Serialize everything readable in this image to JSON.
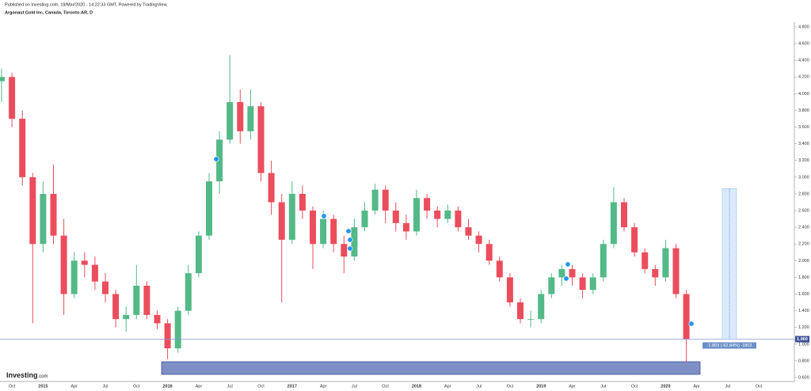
{
  "header": {
    "published": "Published on Investing.com, 19/Mar/2020 - 14:22:33 GMT, Powered by TradingView.",
    "symbol": "Argonaut Gold Inc, Canada, Toronto:AR, D"
  },
  "logo": {
    "brand": "Investing",
    "suffix": ".com"
  },
  "chart_data": {
    "type": "candlestick",
    "categories": [
      null,
      "Oct",
      null,
      null,
      "2015",
      null,
      null,
      "Apr",
      null,
      null,
      "Jul",
      null,
      null,
      "Oct",
      null,
      null,
      "2016",
      null,
      null,
      "Apr",
      null,
      null,
      "Jul",
      null,
      null,
      "Oct",
      null,
      null,
      "2017",
      null,
      null,
      "Apr",
      null,
      null,
      "Jul",
      null,
      null,
      "Oct",
      null,
      null,
      "2018",
      null,
      null,
      "Apr",
      null,
      null,
      "Jul",
      null,
      null,
      "Oct",
      null,
      null,
      "2019",
      null,
      null,
      "Apr",
      null,
      null,
      "Jul",
      null,
      null,
      "Oct",
      null,
      null,
      "2020",
      null,
      null,
      "Apr",
      null,
      null,
      "Jul",
      null,
      null,
      "Oct"
    ],
    "open": [
      4.15,
      4.2,
      3.7,
      3.0,
      2.2,
      2.8,
      2.3,
      1.6,
      2.0,
      1.95,
      1.75,
      1.6,
      1.3,
      1.35,
      1.7,
      1.35,
      1.25,
      0.95,
      1.4,
      1.85,
      2.3,
      2.95,
      3.45,
      3.9,
      3.55,
      3.85,
      3.05,
      2.7,
      2.25,
      2.8,
      2.6,
      2.2,
      2.5,
      2.2,
      2.05,
      2.4,
      2.6,
      2.85,
      2.6,
      2.45,
      2.35,
      2.75,
      2.6,
      2.5,
      2.6,
      2.4,
      2.3,
      2.2,
      2.0,
      1.8,
      1.5,
      1.3,
      1.3,
      1.6,
      1.8,
      1.9,
      1.8,
      1.65,
      1.8,
      2.2,
      2.7,
      2.4,
      2.1,
      1.9,
      1.8,
      2.15,
      1.6,
      null,
      null,
      null,
      null,
      null,
      null,
      null
    ],
    "high": [
      4.3,
      4.25,
      3.8,
      3.05,
      2.95,
      3.15,
      2.5,
      2.1,
      2.1,
      2.05,
      1.85,
      1.65,
      1.45,
      1.95,
      1.75,
      1.4,
      1.3,
      1.45,
      1.95,
      2.35,
      3.05,
      3.55,
      4.46,
      4.05,
      4.05,
      3.9,
      3.2,
      2.8,
      2.95,
      2.9,
      2.65,
      2.6,
      2.55,
      2.3,
      2.5,
      2.7,
      2.92,
      2.9,
      2.7,
      2.55,
      2.85,
      2.8,
      2.65,
      2.67,
      2.65,
      2.5,
      2.35,
      2.25,
      2.05,
      1.85,
      1.55,
      1.4,
      1.65,
      1.85,
      1.95,
      1.95,
      1.85,
      1.85,
      2.25,
      2.88,
      2.75,
      2.45,
      2.15,
      1.95,
      2.25,
      2.2,
      1.65,
      null,
      null,
      null,
      null,
      null,
      null,
      null
    ],
    "low": [
      3.9,
      3.6,
      2.9,
      1.25,
      2.1,
      2.2,
      1.35,
      1.55,
      1.8,
      1.65,
      1.5,
      1.2,
      1.15,
      1.3,
      1.3,
      1.18,
      0.82,
      0.9,
      1.35,
      1.8,
      2.25,
      2.8,
      3.4,
      3.4,
      3.45,
      2.95,
      2.55,
      1.5,
      2.2,
      2.5,
      1.9,
      2.15,
      2.1,
      1.85,
      2.0,
      2.35,
      2.55,
      2.45,
      2.35,
      2.25,
      2.3,
      2.5,
      2.4,
      2.45,
      2.35,
      2.25,
      2.1,
      1.95,
      1.75,
      1.45,
      1.25,
      1.2,
      1.25,
      1.55,
      1.7,
      1.7,
      1.55,
      1.6,
      1.75,
      2.15,
      2.35,
      2.05,
      1.85,
      1.7,
      1.75,
      1.55,
      0.78,
      null,
      null,
      null,
      null,
      null,
      null,
      null
    ],
    "close": [
      4.2,
      3.7,
      3.0,
      2.2,
      2.8,
      2.3,
      1.6,
      2.0,
      1.95,
      1.75,
      1.6,
      1.3,
      1.35,
      1.7,
      1.35,
      1.25,
      0.95,
      1.4,
      1.85,
      2.3,
      2.95,
      3.45,
      3.9,
      3.55,
      3.85,
      3.05,
      2.7,
      2.25,
      2.8,
      2.6,
      2.2,
      2.5,
      2.2,
      2.05,
      2.4,
      2.6,
      2.85,
      2.6,
      2.45,
      2.35,
      2.75,
      2.6,
      2.5,
      2.6,
      2.4,
      2.3,
      2.2,
      2.0,
      1.8,
      1.5,
      1.3,
      1.3,
      1.6,
      1.8,
      1.9,
      1.8,
      1.65,
      1.8,
      2.2,
      2.7,
      2.4,
      2.1,
      1.9,
      1.8,
      2.15,
      1.6,
      1.06,
      null,
      null,
      null,
      null,
      null,
      null,
      null
    ],
    "up_color": "#53b987",
    "down_color": "#eb4d5c",
    "ylim": [
      0.6,
      4.8
    ],
    "yticks": [
      {
        "value": 0.6,
        "label": "0.600"
      },
      {
        "value": 0.8,
        "label": "0.800"
      },
      {
        "value": 1.0,
        "label": "1.000"
      },
      {
        "value": 1.2,
        "label": "1.200"
      },
      {
        "value": 1.4,
        "label": "1.400"
      },
      {
        "value": 1.6,
        "label": "1.600"
      },
      {
        "value": 1.8,
        "label": "1.800"
      },
      {
        "value": 2.0,
        "label": "2.000"
      },
      {
        "value": 2.2,
        "label": "2.200"
      },
      {
        "value": 2.4,
        "label": "2.400"
      },
      {
        "value": 2.6,
        "label": "2.600"
      },
      {
        "value": 2.8,
        "label": "2.800"
      },
      {
        "value": 3.0,
        "label": "3.000"
      },
      {
        "value": 3.2,
        "label": "3.200"
      },
      {
        "value": 3.4,
        "label": "3.400"
      },
      {
        "value": 3.6,
        "label": "3.600"
      },
      {
        "value": 3.8,
        "label": "3.800"
      },
      {
        "value": 4.0,
        "label": "4.000"
      },
      {
        "value": 4.2,
        "label": "4.200"
      },
      {
        "value": 4.4,
        "label": "4.400"
      },
      {
        "value": 4.6,
        "label": "4.600"
      },
      {
        "value": 4.8,
        "label": "4.800"
      }
    ],
    "last_price": {
      "value": 1.06,
      "label": "1.060"
    },
    "measure": {
      "from": 2.863,
      "to": 1.06,
      "label": "-1.803 (-62.84%) -1803"
    }
  }
}
